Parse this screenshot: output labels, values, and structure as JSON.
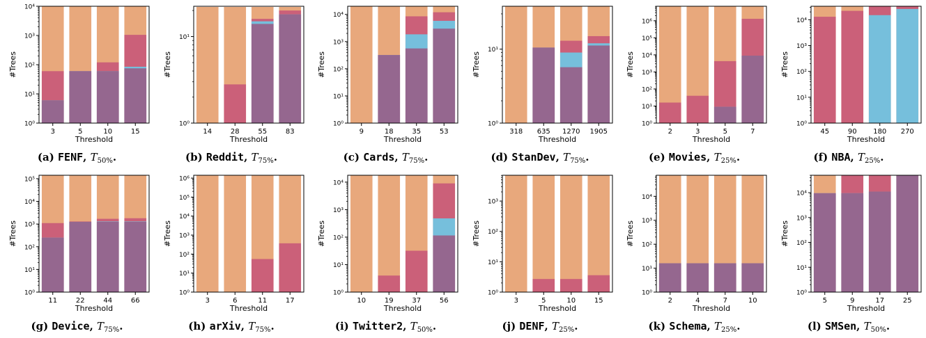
{
  "colors": {
    "all": "#E8A87C",
    "red": "#CB6079",
    "blue": "#76BFDC",
    "purple": "#95678F"
  },
  "xlabel": "Threshold",
  "ylabel": "#Trees",
  "charts": [
    {
      "letter": "(a)",
      "dataset": "FENF",
      "tsub": "50%",
      "title": "(a) FENF, T50%.",
      "ymax_exp": 4,
      "top_value": 13000,
      "yticks": [
        {
          "e": 0
        },
        {
          "e": 1
        },
        {
          "e": 2
        },
        {
          "e": 3
        },
        {
          "e": 4
        }
      ],
      "categories": [
        "3",
        "5",
        "10",
        "15"
      ],
      "series": {
        "red": [
          60,
          60,
          120,
          1050
        ],
        "blue": [
          6,
          60,
          60,
          85
        ],
        "purple": [
          6,
          60,
          60,
          75
        ]
      }
    },
    {
      "letter": "(b)",
      "dataset": "Reddit",
      "tsub": "75%",
      "title": "(b) Reddit, T75%.",
      "ymax_exp": 1.35,
      "top_value": 22,
      "yticks": [
        {
          "e": 0
        },
        {
          "e": 1
        }
      ],
      "categories": [
        "14",
        "28",
        "55",
        "83"
      ],
      "series": {
        "red": [
          1,
          2.8,
          16,
          20
        ],
        "blue": [
          1,
          1,
          15,
          18
        ],
        "purple": [
          1,
          1,
          14,
          18
        ]
      }
    },
    {
      "letter": "(c)",
      "dataset": "Cards",
      "tsub": "75%",
      "title": "(c) Cards, T75%.",
      "ymax_exp": 4.3,
      "top_value": 20000,
      "yticks": [
        {
          "e": 0
        },
        {
          "e": 1
        },
        {
          "e": 2
        },
        {
          "e": 3
        },
        {
          "e": 4
        }
      ],
      "categories": [
        "9",
        "18",
        "35",
        "53"
      ],
      "series": {
        "red": [
          1,
          320,
          8500,
          12000
        ],
        "blue": [
          1,
          320,
          1850,
          5800
        ],
        "purple": [
          1,
          320,
          560,
          3000
        ]
      }
    },
    {
      "letter": "(d)",
      "dataset": "StanDev",
      "tsub": "75%",
      "title": "(d) StanDev, T75%.",
      "ymax_exp": 1.58,
      "top_value": 38,
      "yticks": [
        {
          "e": 0
        },
        {
          "e": 1
        }
      ],
      "categories": [
        "318",
        "635",
        "1270",
        "1905"
      ],
      "series": {
        "red": [
          1,
          10.5,
          13,
          15
        ],
        "blue": [
          1,
          10.5,
          9,
          12
        ],
        "purple": [
          1,
          10.5,
          5.7,
          11.2
        ]
      }
    },
    {
      "letter": "(e)",
      "dataset": "Movies",
      "tsub": "25%",
      "title": "(e) Movies, T25%.",
      "ymax_exp": 6.85,
      "top_value": 7000000,
      "yticks": [
        {
          "e": 0
        },
        {
          "e": 1
        },
        {
          "e": 2
        },
        {
          "e": 3
        },
        {
          "e": 4
        },
        {
          "e": 5
        },
        {
          "e": 6
        }
      ],
      "categories": [
        "2",
        "3",
        "5",
        "7"
      ],
      "series": {
        "red": [
          16,
          40,
          4300,
          1300000
        ],
        "blue": [
          1,
          1,
          9,
          9000
        ],
        "purple": [
          1,
          1,
          9,
          9000
        ]
      }
    },
    {
      "letter": "(f)",
      "dataset": "NBA",
      "tsub": "25%",
      "title": "(f) NBA, T25%.",
      "ymax_exp": 4.52,
      "top_value": 33000,
      "yticks": [
        {
          "e": 0
        },
        {
          "e": 1
        },
        {
          "e": 2
        },
        {
          "e": 3
        },
        {
          "e": 4
        }
      ],
      "categories": [
        "45",
        "90",
        "180",
        "270"
      ],
      "series": {
        "red": [
          13000,
          22000,
          33000,
          33000
        ],
        "blue": [
          1,
          1,
          15000,
          26000
        ],
        "purple": [
          1,
          1,
          1,
          1
        ]
      }
    },
    {
      "letter": "(g)",
      "dataset": "Device",
      "tsub": "75%",
      "title": "(g) Device, T75%.",
      "ymax_exp": 5.15,
      "top_value": 140000,
      "yticks": [
        {
          "e": 0
        },
        {
          "e": 1
        },
        {
          "e": 2
        },
        {
          "e": 3
        },
        {
          "e": 4
        },
        {
          "e": 5
        }
      ],
      "categories": [
        "11",
        "22",
        "44",
        "66"
      ],
      "series": {
        "red": [
          1100,
          1300,
          1700,
          1800
        ],
        "blue": [
          250,
          1250,
          1300,
          1300
        ],
        "purple": [
          250,
          1250,
          1250,
          1250
        ]
      }
    },
    {
      "letter": "(h)",
      "dataset": "arXiv",
      "tsub": "75%",
      "title": "(h) arXiv, T75%.",
      "ymax_exp": 6.15,
      "top_value": 1400000,
      "yticks": [
        {
          "e": 0
        },
        {
          "e": 1
        },
        {
          "e": 2
        },
        {
          "e": 3
        },
        {
          "e": 4
        },
        {
          "e": 5
        },
        {
          "e": 6
        }
      ],
      "categories": [
        "3",
        "6",
        "11",
        "17"
      ],
      "series": {
        "red": [
          1,
          1,
          55,
          370
        ],
        "blue": [
          1,
          1,
          1,
          1
        ],
        "purple": [
          1,
          1,
          1,
          1
        ]
      }
    },
    {
      "letter": "(i)",
      "dataset": "Twitter2",
      "tsub": "50%",
      "title": "(i) Twitter2, T50%.",
      "ymax_exp": 4.25,
      "top_value": 18000,
      "yticks": [
        {
          "e": 0
        },
        {
          "e": 1
        },
        {
          "e": 2
        },
        {
          "e": 3
        },
        {
          "e": 4
        }
      ],
      "categories": [
        "10",
        "19",
        "37",
        "56"
      ],
      "series": {
        "red": [
          1,
          4,
          32,
          9000
        ],
        "blue": [
          1,
          1,
          1,
          480
        ],
        "purple": [
          1,
          1,
          1,
          115
        ]
      }
    },
    {
      "letter": "(j)",
      "dataset": "DENF",
      "tsub": "25%",
      "title": "(j) DENF, T25%.",
      "ymax_exp": 3.85,
      "top_value": 7000,
      "yticks": [
        {
          "e": 0
        },
        {
          "e": 1
        },
        {
          "e": 2
        },
        {
          "e": 3
        }
      ],
      "categories": [
        "3",
        "5",
        "10",
        "15"
      ],
      "series": {
        "red": [
          1,
          2.7,
          2.7,
          3.6
        ],
        "blue": [
          1,
          1,
          1,
          1
        ],
        "purple": [
          1,
          1,
          1,
          1
        ]
      }
    },
    {
      "letter": "(k)",
      "dataset": "Schema",
      "tsub": "25%",
      "title": "(k) Schema, T25%.",
      "ymax_exp": 4.88,
      "top_value": 75000,
      "yticks": [
        {
          "e": 0
        },
        {
          "e": 1
        },
        {
          "e": 2
        },
        {
          "e": 3
        },
        {
          "e": 4
        }
      ],
      "categories": [
        "2",
        "4",
        "7",
        "10"
      ],
      "series": {
        "red": [
          16,
          16,
          16,
          16
        ],
        "blue": [
          16,
          16,
          16,
          16
        ],
        "purple": [
          16,
          16,
          16,
          16
        ]
      }
    },
    {
      "letter": "(l)",
      "dataset": "SMSen",
      "tsub": "50%",
      "title": "(l) SMSen, T50%.",
      "ymax_exp": 4.7,
      "top_value": 50000,
      "yticks": [
        {
          "e": 0
        },
        {
          "e": 1
        },
        {
          "e": 2
        },
        {
          "e": 3
        },
        {
          "e": 4
        }
      ],
      "categories": [
        "5",
        "9",
        "17",
        "25"
      ],
      "series": {
        "red": [
          9500,
          50000,
          50000,
          50000
        ],
        "blue": [
          9500,
          9500,
          11000,
          50000
        ],
        "purple": [
          9500,
          9500,
          11000,
          50000
        ]
      }
    }
  ]
}
